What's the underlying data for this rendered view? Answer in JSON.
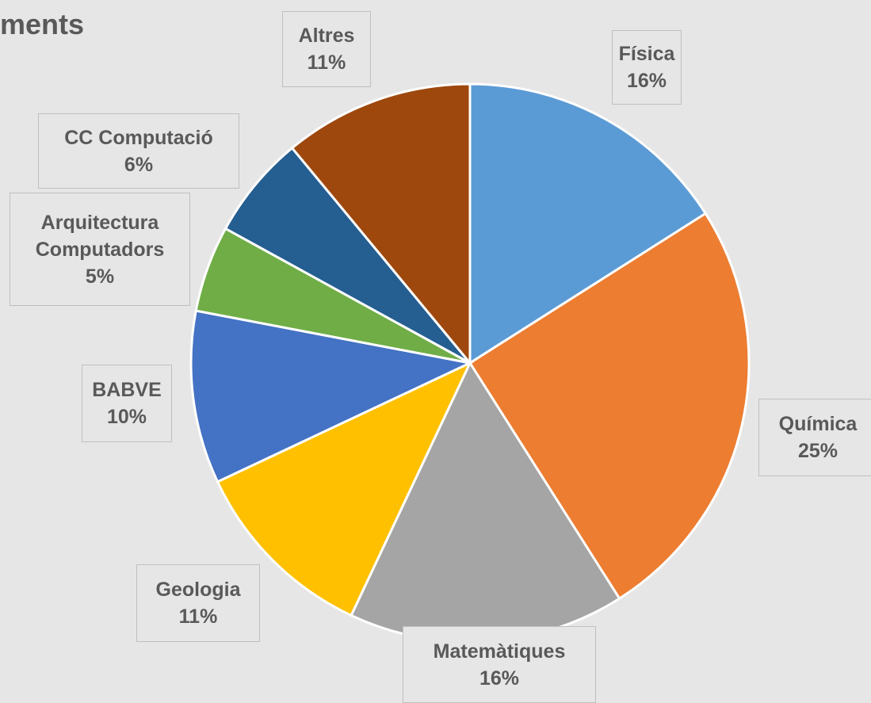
{
  "chart_data": {
    "type": "pie",
    "title": "ments",
    "categories": [
      "Física",
      "Química",
      "Matemàtiques",
      "Geologia",
      "BABVE",
      "Arquitectura Computadors",
      "CC Computació",
      "Altres"
    ],
    "values": [
      16,
      25,
      16,
      11,
      10,
      5,
      6,
      11
    ],
    "value_labels": [
      "16%",
      "25%",
      "16%",
      "11%",
      "10%",
      "5%",
      "6%",
      "11%"
    ],
    "colors": [
      "#5b9bd5",
      "#ed7d31",
      "#a5a5a5",
      "#ffc000",
      "#4472c4",
      "#70ad47",
      "#255e91",
      "#9e480e"
    ]
  }
}
